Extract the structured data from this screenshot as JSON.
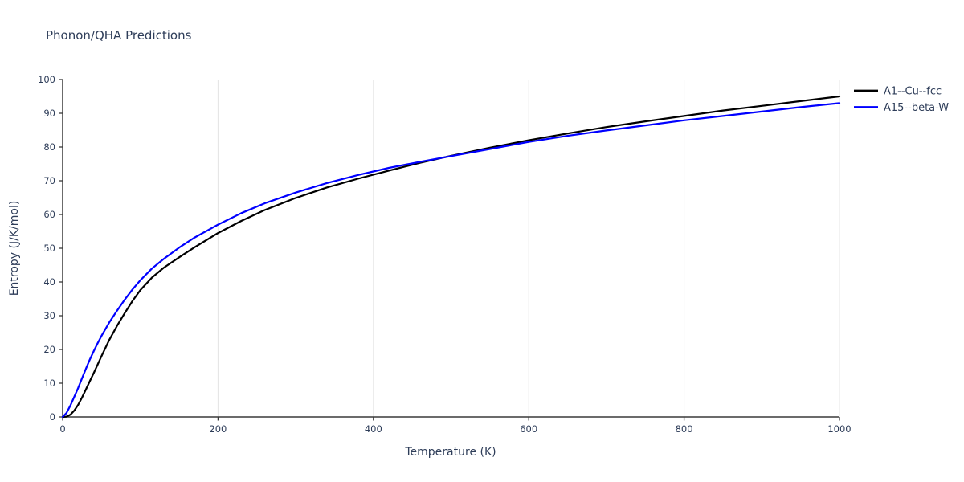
{
  "chart_data": {
    "type": "line",
    "title": "Phonon/QHA Predictions",
    "xlabel": "Temperature (K)",
    "ylabel": "Entropy (J/K/mol)",
    "xlim": [
      0,
      1000
    ],
    "ylim": [
      0,
      100
    ],
    "x_ticks": [
      0,
      200,
      400,
      600,
      800,
      1000
    ],
    "y_ticks": [
      0,
      10,
      20,
      30,
      40,
      50,
      60,
      70,
      80,
      90,
      100
    ],
    "grid": "vertical-only",
    "legend_position": "top-right",
    "colors": {
      "text": "#2e3d59",
      "axis": "#3a3a3a",
      "grid": "#e4e4e4"
    },
    "series": [
      {
        "name": "A1--Cu--fcc",
        "color": "#000000",
        "x": [
          0,
          5,
          10,
          15,
          20,
          25,
          30,
          35,
          40,
          45,
          50,
          60,
          70,
          80,
          90,
          100,
          115,
          130,
          150,
          170,
          200,
          230,
          260,
          300,
          340,
          380,
          420,
          460,
          500,
          550,
          600,
          650,
          700,
          750,
          800,
          850,
          900,
          950,
          1000
        ],
        "y": [
          0,
          0.1,
          0.7,
          1.9,
          3.6,
          5.8,
          8.2,
          10.6,
          13.0,
          15.5,
          18.0,
          22.8,
          27.0,
          30.8,
          34.4,
          37.6,
          41.3,
          44.2,
          47.3,
          50.3,
          54.5,
          58.1,
          61.3,
          64.9,
          68.0,
          70.6,
          73.0,
          75.3,
          77.4,
          79.8,
          82.0,
          84.0,
          85.9,
          87.6,
          89.2,
          90.8,
          92.2,
          93.6,
          95.0
        ]
      },
      {
        "name": "A15--beta-W",
        "color": "#0000ff",
        "x": [
          0,
          5,
          10,
          15,
          20,
          25,
          30,
          35,
          40,
          45,
          50,
          60,
          70,
          80,
          90,
          100,
          115,
          130,
          150,
          170,
          200,
          230,
          260,
          300,
          340,
          380,
          420,
          460,
          500,
          550,
          600,
          650,
          700,
          750,
          800,
          850,
          900,
          950,
          1000
        ],
        "y": [
          0,
          1.2,
          3.4,
          6.0,
          8.6,
          11.5,
          14.3,
          17.0,
          19.5,
          21.8,
          24.0,
          28.0,
          31.5,
          34.8,
          37.8,
          40.5,
          44.0,
          46.8,
          50.2,
          53.2,
          57.0,
          60.4,
          63.3,
          66.5,
          69.3,
          71.7,
          73.8,
          75.6,
          77.3,
          79.4,
          81.5,
          83.3,
          84.9,
          86.4,
          87.9,
          89.2,
          90.5,
          91.8,
          93.0
        ]
      }
    ]
  }
}
